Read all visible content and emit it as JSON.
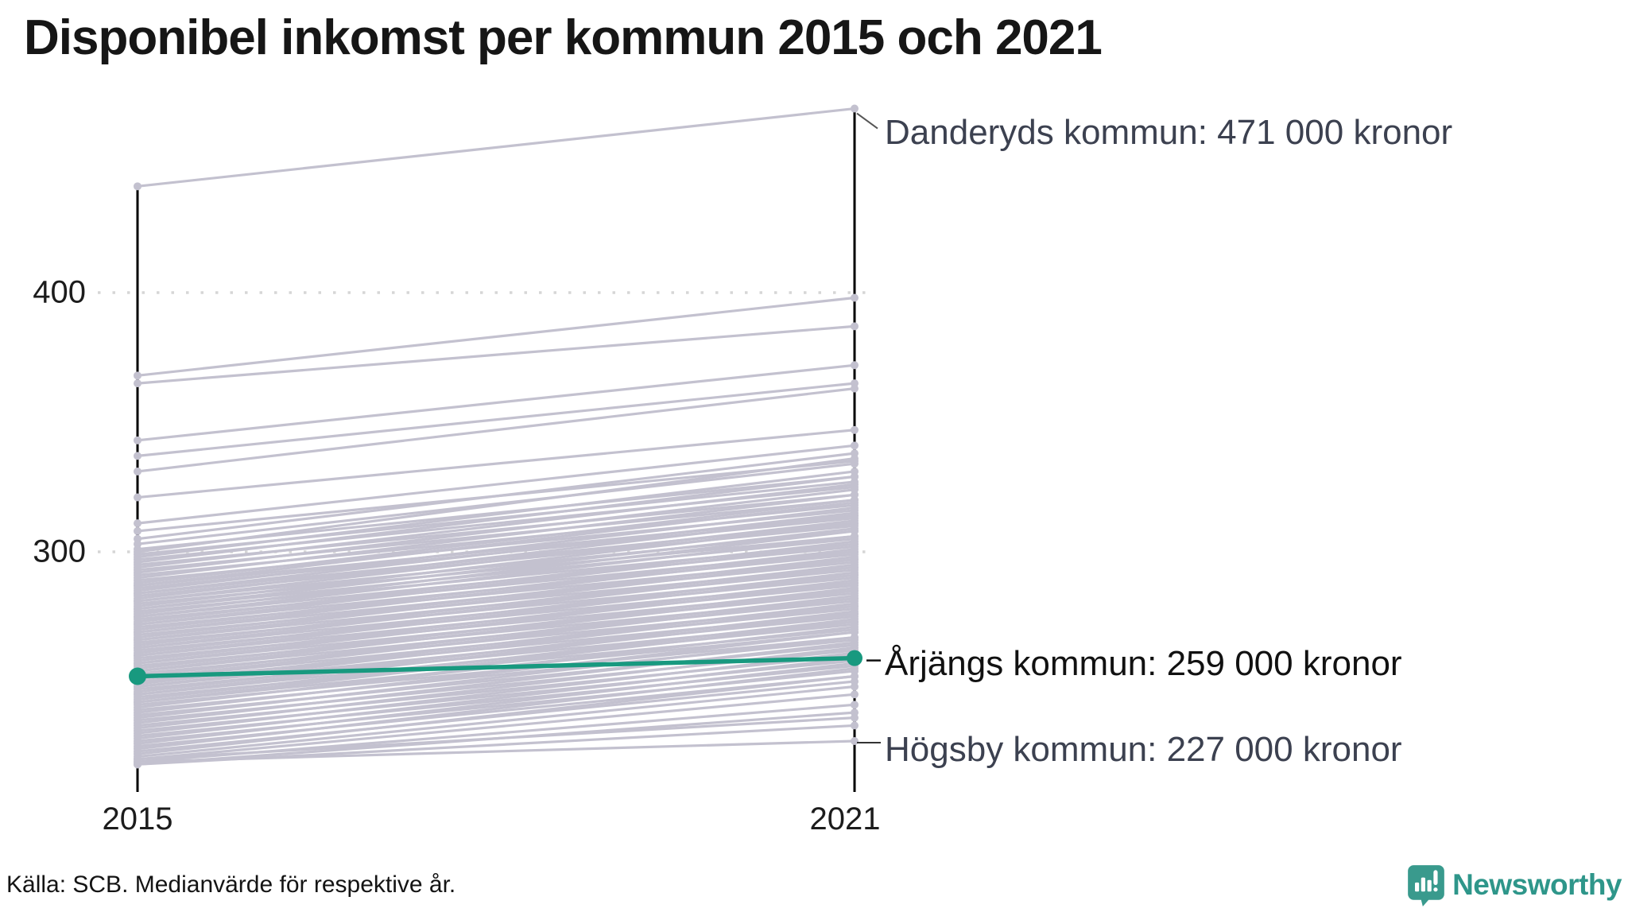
{
  "title": "Disponibel inkomst per kommun 2015 och 2021",
  "footer": {
    "source": "Källa: SCB. Medianvärde för respektive år."
  },
  "logo": {
    "text": "Newsworthy"
  },
  "axis": {
    "y_ticks": [
      {
        "label": "400",
        "value": 400
      },
      {
        "label": "300",
        "value": 300
      }
    ],
    "x_ticks": [
      {
        "label": "2015"
      },
      {
        "label": "2021"
      }
    ]
  },
  "colors": {
    "highlight": "#18997f",
    "background_line": "#c3c1cf",
    "axis": "#000000",
    "grid": "#d6d6d6",
    "annotation_gray": "#3c4150",
    "annotation_black": "#111111",
    "connector": "#555555",
    "logo_teal": "#2e968a",
    "icon_teal": "#399a8d"
  },
  "chart_data": {
    "type": "line",
    "subtype": "slopegraph",
    "x": [
      2015,
      2021
    ],
    "unit": "1 000 kronor",
    "ylim": [
      207,
      475
    ],
    "grid_values": [
      400,
      300
    ],
    "highlight": {
      "name": "Årjängs kommun",
      "values": [
        252,
        259
      ],
      "label": "Årjängs kommun: 259 000 kronor"
    },
    "labeled": [
      {
        "name": "Danderyds kommun",
        "values": [
          441,
          471
        ],
        "label": "Danderyds kommun: 471 000 kronor"
      },
      {
        "name": "Högsby kommun",
        "values": [
          219,
          227
        ],
        "label": "Högsby kommun: 227 000 kronor"
      }
    ],
    "background_lines": [
      [
        441,
        471
      ],
      [
        368,
        398
      ],
      [
        365,
        387
      ],
      [
        343,
        372
      ],
      [
        337,
        365
      ],
      [
        331,
        363
      ],
      [
        321,
        347
      ],
      [
        311,
        341
      ],
      [
        308,
        335
      ],
      [
        305,
        338
      ],
      [
        303,
        334
      ],
      [
        301,
        329
      ],
      [
        300,
        336
      ],
      [
        299,
        327
      ],
      [
        298,
        331
      ],
      [
        297,
        325
      ],
      [
        296,
        329
      ],
      [
        295,
        322
      ],
      [
        294,
        326
      ],
      [
        293,
        320
      ],
      [
        292,
        324
      ],
      [
        291,
        318
      ],
      [
        290,
        322
      ],
      [
        289,
        316
      ],
      [
        288,
        320
      ],
      [
        287,
        314
      ],
      [
        287,
        319
      ],
      [
        286,
        313
      ],
      [
        285,
        317
      ],
      [
        284,
        311
      ],
      [
        284,
        315
      ],
      [
        283,
        310
      ],
      [
        282,
        314
      ],
      [
        281,
        308
      ],
      [
        281,
        312
      ],
      [
        280,
        306
      ],
      [
        279,
        311
      ],
      [
        278,
        305
      ],
      [
        278,
        309
      ],
      [
        277,
        303
      ],
      [
        276,
        308
      ],
      [
        275,
        302
      ],
      [
        275,
        306
      ],
      [
        274,
        300
      ],
      [
        273,
        304
      ],
      [
        272,
        299
      ],
      [
        272,
        303
      ],
      [
        271,
        297
      ],
      [
        270,
        301
      ],
      [
        269,
        296
      ],
      [
        269,
        300
      ],
      [
        268,
        294
      ],
      [
        267,
        298
      ],
      [
        266,
        293
      ],
      [
        266,
        297
      ],
      [
        265,
        291
      ],
      [
        264,
        295
      ],
      [
        263,
        290
      ],
      [
        263,
        294
      ],
      [
        262,
        288
      ],
      [
        261,
        292
      ],
      [
        260,
        287
      ],
      [
        260,
        291
      ],
      [
        259,
        285
      ],
      [
        258,
        289
      ],
      [
        257,
        284
      ],
      [
        257,
        288
      ],
      [
        256,
        282
      ],
      [
        255,
        286
      ],
      [
        254,
        281
      ],
      [
        254,
        285
      ],
      [
        253,
        279
      ],
      [
        252,
        283
      ],
      [
        251,
        278
      ],
      [
        251,
        282
      ],
      [
        250,
        276
      ],
      [
        249,
        280
      ],
      [
        248,
        275
      ],
      [
        248,
        279
      ],
      [
        247,
        273
      ],
      [
        246,
        277
      ],
      [
        245,
        272
      ],
      [
        245,
        276
      ],
      [
        244,
        270
      ],
      [
        243,
        274
      ],
      [
        242,
        269
      ],
      [
        242,
        273
      ],
      [
        241,
        267
      ],
      [
        240,
        271
      ],
      [
        239,
        266
      ],
      [
        238,
        269
      ],
      [
        237,
        264
      ],
      [
        236,
        267
      ],
      [
        235,
        262
      ],
      [
        234,
        265
      ],
      [
        233,
        260
      ],
      [
        232,
        263
      ],
      [
        231,
        258
      ],
      [
        230,
        261
      ],
      [
        229,
        256
      ],
      [
        228,
        259
      ],
      [
        227,
        254
      ],
      [
        226,
        257
      ],
      [
        225,
        252
      ],
      [
        224,
        255
      ],
      [
        223,
        250
      ],
      [
        222,
        252
      ],
      [
        221,
        248
      ],
      [
        220,
        245
      ],
      [
        219,
        241
      ],
      [
        218,
        238
      ],
      [
        218,
        233
      ],
      [
        220,
        236
      ],
      [
        219,
        227
      ]
    ]
  }
}
